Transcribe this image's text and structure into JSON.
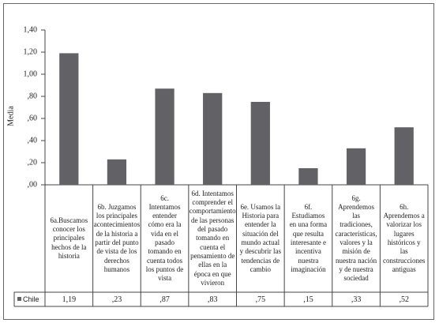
{
  "chart_data": {
    "type": "bar",
    "y_label": "Media",
    "categories": [
      "6a.Buscamos conocer los principales hechos de la historia",
      "6b. Juzgamos los principales acontecimientos de la historia a partir del punto de vista de los derechos humanos",
      "6c. Intentamos entender cómo era la vida en el pasado tomando en cuenta todos los puntos de vista",
      "6d. Intentamos comprender el comportamiento de las personas del pasado tomando en cuenta el pensamiento de ellas en la época en que vivieron",
      "6e. Usamos la Historia para entender la situación del mundo actual y descubrir las tendencias de cambio",
      "6f. Estudiamos en una forma que resulta interesante e incentiva nuestra imaginación",
      "6g. Aprendemos las tradiciones, características, valores y la misión de nuestra nación y de nuestra sociedad",
      "6h. Aprendemos a valorizar los lugares históricos y las construcciones antiguas"
    ],
    "series": [
      {
        "name": "Chile",
        "color": "#616166",
        "values": [
          1.19,
          0.23,
          0.87,
          0.83,
          0.75,
          0.15,
          0.33,
          0.52
        ],
        "value_labels": [
          "1,19",
          ",23",
          ",87",
          ",83",
          ",75",
          ",15",
          ",33",
          ",52"
        ]
      }
    ],
    "ylim": [
      0,
      1.4
    ],
    "yticks": [
      {
        "value": 0,
        "label": ",00"
      },
      {
        "value": 0.2,
        "label": ",20"
      },
      {
        "value": 0.4,
        "label": ",40"
      },
      {
        "value": 0.6,
        "label": ",60"
      },
      {
        "value": 0.8,
        "label": ",80"
      },
      {
        "value": 1,
        "label": "1,00"
      },
      {
        "value": 1.2,
        "label": "1,20"
      },
      {
        "value": 1.4,
        "label": "1,40"
      }
    ],
    "grid": false
  }
}
